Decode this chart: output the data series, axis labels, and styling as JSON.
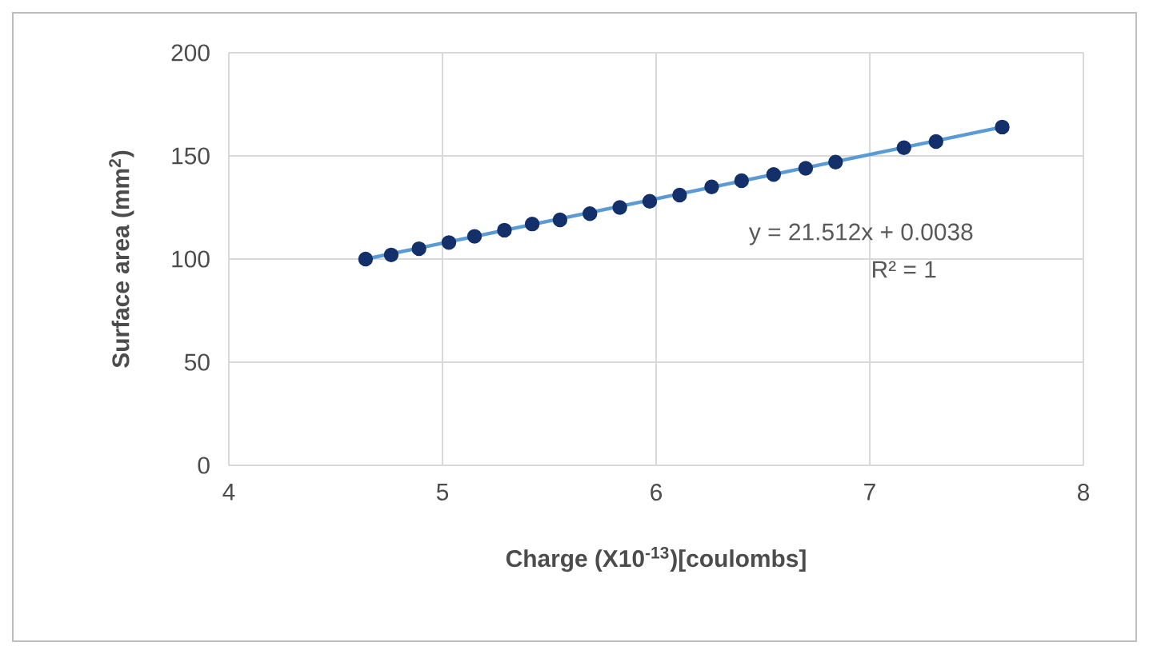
{
  "chart_data": {
    "type": "scatter",
    "xlabel": "Charge (X10$^{-13}$)[coulombs]",
    "ylabel": "Surface area (mm$^{2}$)",
    "xlim": [
      4,
      8
    ],
    "xticks": [
      4,
      5,
      6,
      7,
      8
    ],
    "ylim": [
      0,
      200
    ],
    "yticks": [
      0,
      50,
      100,
      150,
      200
    ],
    "grid": true,
    "series": [
      {
        "color": "#13306b",
        "marker": "circle",
        "x": [
          4.64,
          4.76,
          4.89,
          5.03,
          5.15,
          5.29,
          5.42,
          5.55,
          5.69,
          5.83,
          5.97,
          6.11,
          6.26,
          6.4,
          6.55,
          6.7,
          6.84,
          7.16,
          7.31,
          7.62
        ],
        "values": [
          100,
          102,
          105,
          108,
          111,
          114,
          117,
          119,
          122,
          125,
          128,
          131,
          135,
          138,
          141,
          144,
          147,
          154,
          157,
          164
        ]
      },
      {
        "type": "line",
        "color": "#5b9bd5",
        "line_style": "solid",
        "x": [
          4.64,
          7.62
        ],
        "values": [
          100,
          164
        ]
      }
    ],
    "annotations": [
      "y = 21.512x + 0.0038",
      "R² = 1"
    ]
  }
}
